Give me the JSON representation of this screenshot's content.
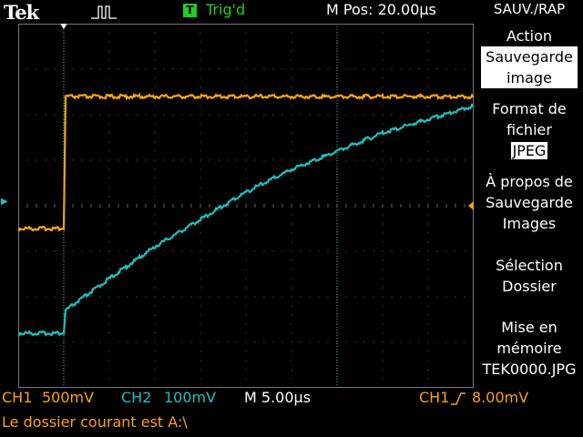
{
  "header": {
    "brand": "Tek",
    "trigger_box": "T",
    "trigger_status": "Trig'd",
    "m_pos": "M Pos: 20.00µs",
    "menu_title": "SAUV./RAP"
  },
  "menu": {
    "action_label": "Action",
    "action_value_1": "Sauvegarde",
    "action_value_2": "image",
    "format_label_1": "Format de",
    "format_label_2": "fichier",
    "format_value": "JPEG",
    "about_1": "À propos de",
    "about_2": "Sauvegarde",
    "about_3": "Images",
    "select_1": "Sélection",
    "select_2": "Dossier",
    "store_1": "Mise en",
    "store_2": "mémoire",
    "store_3": "TEK0000.JPG"
  },
  "status": {
    "ch1": "CH1",
    "ch1_scale": "500mV",
    "ch2": "CH2",
    "ch2_scale": "100mV",
    "timebase": "M 5.00µs",
    "trigger_source": "CH1",
    "trigger_level": "8.00mV",
    "folder_message": "Le dossier courant est A:\\"
  },
  "markers": {
    "ch2_ground": "2"
  },
  "colors": {
    "ch1": "#f5a21a",
    "ch2": "#1fc0bd",
    "trigger": "#22cc22"
  },
  "chart_data": {
    "type": "line",
    "x_unit": "µs",
    "x_per_div": 5,
    "x_divisions": 10,
    "y_divisions": 8,
    "grid": true,
    "series": [
      {
        "name": "CH1",
        "volts_per_div": 0.5,
        "x": [
          0,
          5.0,
          5.2,
          50
        ],
        "y_div": [
          -0.5,
          -0.5,
          2.4,
          2.4
        ]
      },
      {
        "name": "CH2",
        "volts_per_div": 0.1,
        "x": [
          0,
          5.0,
          5.2,
          10,
          15,
          20,
          25,
          30,
          35,
          40,
          45,
          50
        ],
        "y_div": [
          -2.8,
          -2.8,
          -2.3,
          -1.6,
          -0.9,
          -0.3,
          0.3,
          0.8,
          1.2,
          1.6,
          1.9,
          2.2
        ]
      }
    ]
  }
}
